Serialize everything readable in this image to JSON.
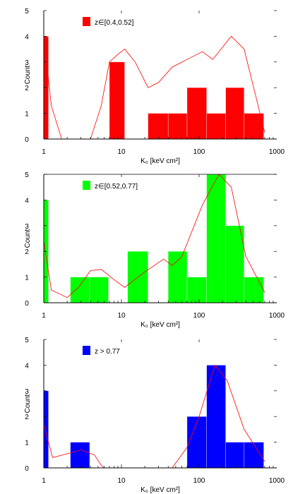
{
  "chart_data": [
    {
      "type": "bar",
      "legend_label": "z∈[0.4,0.52]",
      "legend_position": "top-left",
      "xlabel": "K₀ [keV cm²]",
      "ylabel": "Count",
      "xscale": "log",
      "xlim": [
        1,
        1000
      ],
      "ylim": [
        0,
        5
      ],
      "x_ticklabels": [
        "1",
        "10",
        "100",
        "1000"
      ],
      "y_ticklabels": [
        "0",
        "1",
        "2",
        "3",
        "4",
        "5"
      ],
      "color": "#ff0000",
      "bins": [
        {
          "x0": 1.0,
          "x1": 1.15,
          "count": 4
        },
        {
          "x0": 7.0,
          "x1": 11.0,
          "count": 3
        },
        {
          "x0": 22.0,
          "x1": 40.0,
          "count": 1
        },
        {
          "x0": 40.0,
          "x1": 70.0,
          "count": 1
        },
        {
          "x0": 70.0,
          "x1": 125.0,
          "count": 2
        },
        {
          "x0": 125.0,
          "x1": 220.0,
          "count": 1
        },
        {
          "x0": 220.0,
          "x1": 380.0,
          "count": 2
        },
        {
          "x0": 380.0,
          "x1": 680.0,
          "count": 1
        }
      ],
      "curve": [
        [
          1.0,
          4.0
        ],
        [
          1.25,
          1.3
        ],
        [
          1.7,
          0.0
        ],
        [
          4.0,
          0.0
        ],
        [
          5.5,
          1.3
        ],
        [
          7.0,
          3.0
        ],
        [
          9.0,
          3.3
        ],
        [
          11.0,
          3.5
        ],
        [
          15.0,
          3.0
        ],
        [
          22.0,
          2.0
        ],
        [
          30.0,
          2.2
        ],
        [
          45.0,
          2.8
        ],
        [
          70.0,
          3.1
        ],
        [
          110.0,
          3.4
        ],
        [
          150.0,
          3.1
        ],
        [
          260.0,
          4.0
        ],
        [
          380.0,
          3.5
        ],
        [
          700.0,
          0.25
        ]
      ]
    },
    {
      "type": "bar",
      "legend_label": "z∈[0.52,0.77]",
      "legend_position": "top-left",
      "xlabel": "K₀ [keV cm²]",
      "ylabel": "Count",
      "xscale": "log",
      "xlim": [
        1,
        1000
      ],
      "ylim": [
        0,
        5
      ],
      "x_ticklabels": [
        "1",
        "10",
        "100",
        "1000"
      ],
      "y_ticklabels": [
        "0",
        "1",
        "2",
        "3",
        "4",
        "5"
      ],
      "color": "#00ff00",
      "bins": [
        {
          "x0": 1.0,
          "x1": 1.15,
          "count": 4
        },
        {
          "x0": 2.2,
          "x1": 3.9,
          "count": 1
        },
        {
          "x0": 3.9,
          "x1": 6.8,
          "count": 1
        },
        {
          "x0": 12.0,
          "x1": 22.0,
          "count": 2
        },
        {
          "x0": 40.0,
          "x1": 70.0,
          "count": 2
        },
        {
          "x0": 70.0,
          "x1": 125.0,
          "count": 1
        },
        {
          "x0": 125.0,
          "x1": 220.0,
          "count": 5
        },
        {
          "x0": 220.0,
          "x1": 380.0,
          "count": 3
        },
        {
          "x0": 380.0,
          "x1": 680.0,
          "count": 1
        }
      ],
      "curve": [
        [
          1.0,
          2.4
        ],
        [
          1.25,
          0.5
        ],
        [
          2.0,
          0.2
        ],
        [
          2.8,
          0.6
        ],
        [
          4.0,
          1.25
        ],
        [
          5.5,
          1.3
        ],
        [
          8.0,
          0.9
        ],
        [
          11.0,
          0.6
        ],
        [
          20.0,
          1.2
        ],
        [
          35.0,
          1.7
        ],
        [
          45.0,
          1.45
        ],
        [
          60.0,
          1.8
        ],
        [
          110.0,
          3.8
        ],
        [
          180.0,
          5.0
        ],
        [
          260.0,
          4.5
        ],
        [
          400.0,
          1.8
        ],
        [
          700.0,
          0.4
        ]
      ]
    },
    {
      "type": "bar",
      "legend_label": "z > 0.77",
      "legend_position": "top-left",
      "xlabel": "K₀ [keV cm²]",
      "ylabel": "Count",
      "xscale": "log",
      "xlim": [
        1,
        1000
      ],
      "ylim": [
        0,
        5
      ],
      "x_ticklabels": [
        "1",
        "10",
        "100",
        "1000"
      ],
      "y_ticklabels": [
        "0",
        "1",
        "2",
        "3",
        "4",
        "5"
      ],
      "color": "#0000ff",
      "bins": [
        {
          "x0": 1.0,
          "x1": 1.15,
          "count": 3
        },
        {
          "x0": 2.2,
          "x1": 3.9,
          "count": 1
        },
        {
          "x0": 70.0,
          "x1": 125.0,
          "count": 2
        },
        {
          "x0": 125.0,
          "x1": 220.0,
          "count": 4
        },
        {
          "x0": 220.0,
          "x1": 380.0,
          "count": 1
        },
        {
          "x0": 380.0,
          "x1": 680.0,
          "count": 1
        }
      ],
      "curve": [
        [
          1.0,
          1.7
        ],
        [
          1.3,
          0.4
        ],
        [
          2.0,
          0.55
        ],
        [
          3.0,
          0.7
        ],
        [
          4.5,
          0.5
        ],
        [
          5.5,
          0.1
        ],
        [
          6.0,
          0.0
        ],
        [
          45.0,
          0.0
        ],
        [
          70.0,
          0.8
        ],
        [
          100.0,
          2.0
        ],
        [
          160.0,
          4.0
        ],
        [
          230.0,
          3.4
        ],
        [
          380.0,
          1.5
        ],
        [
          700.0,
          0.25
        ]
      ]
    }
  ]
}
